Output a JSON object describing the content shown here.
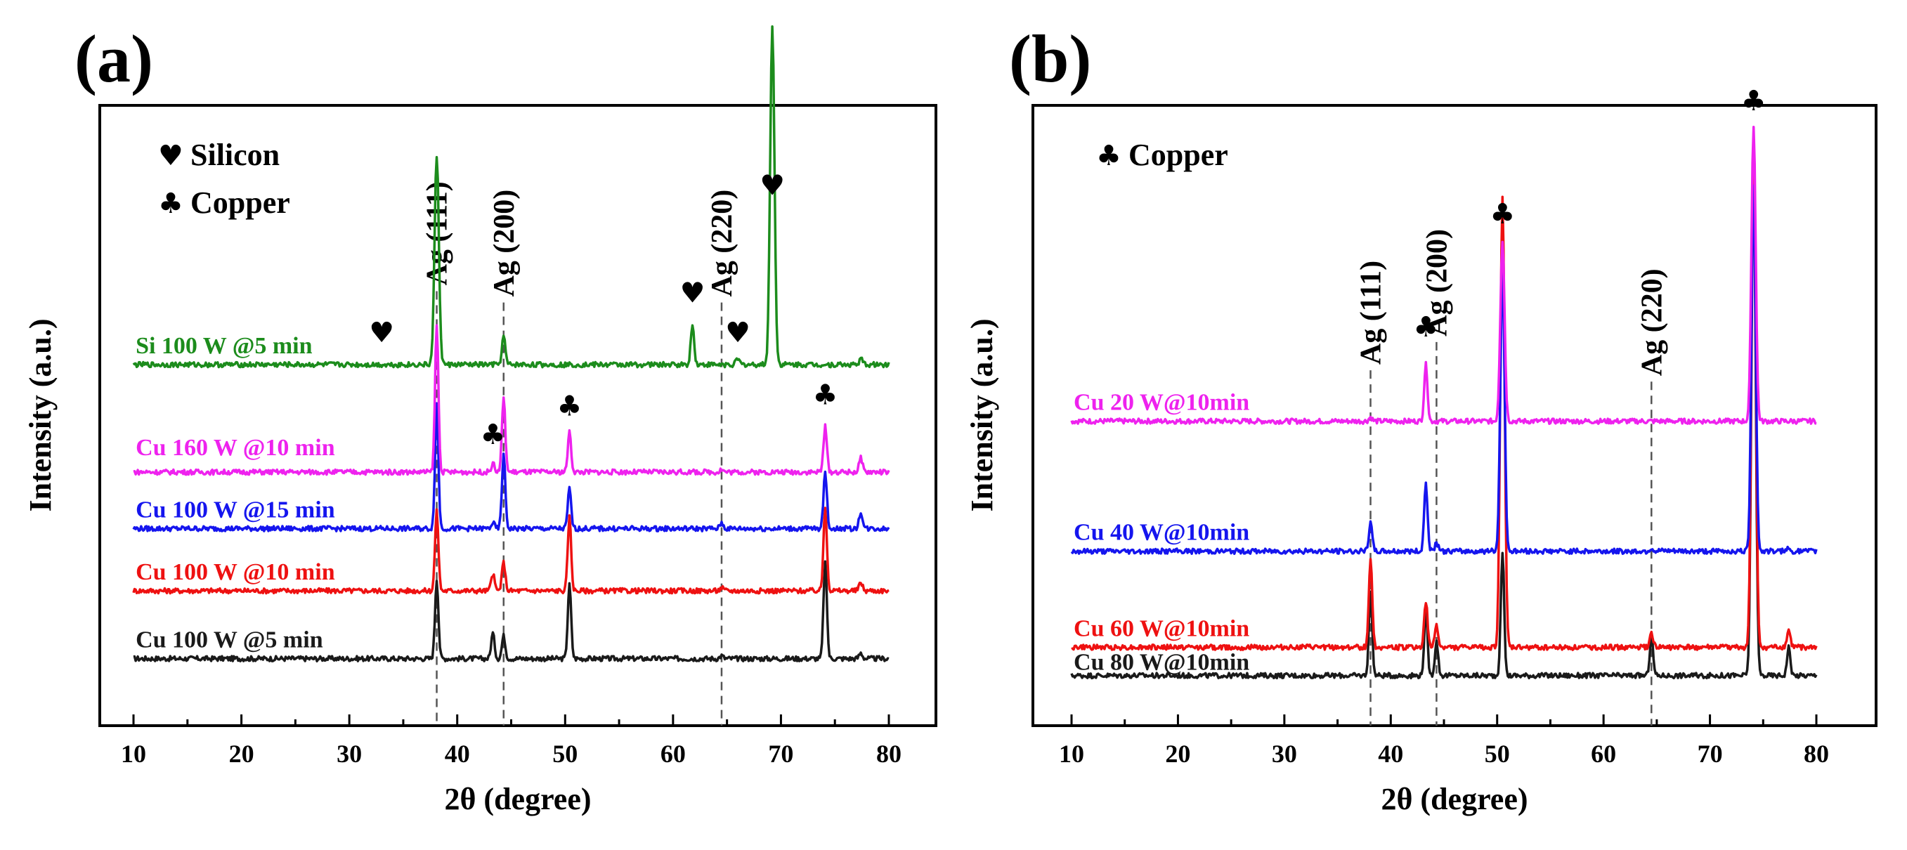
{
  "figure": {
    "panels": [
      "(a)",
      "(b)"
    ]
  },
  "colors": {
    "black": "#1a1a1a",
    "red": "#ee1111",
    "blue": "#1515ee",
    "magenta": "#ee22ee",
    "green": "#1c8c1c"
  },
  "chart_data": [
    {
      "type": "line",
      "panel_label": "(a)",
      "xlabel": "2θ (degree)",
      "ylabel": "Intensity (a.u.)",
      "xlim": [
        10,
        80
      ],
      "ylim": [
        0,
        105
      ],
      "xticks": [
        10,
        20,
        30,
        40,
        50,
        60,
        70,
        80
      ],
      "xtick_labels": [
        "10",
        "20",
        "30",
        "40",
        "50",
        "60",
        "70",
        "80"
      ],
      "legend": [
        {
          "symbol": "♥",
          "label": "Silicon"
        },
        {
          "symbol": "♣",
          "label": "Copper"
        }
      ],
      "reference_lines": [
        {
          "x": 38.1,
          "label": "Ag (111)",
          "label_y": 75
        },
        {
          "x": 44.3,
          "label": "Ag (200)",
          "label_y": 73
        },
        {
          "x": 64.5,
          "label": "Ag (220)",
          "label_y": 73
        }
      ],
      "series": [
        {
          "name": "Cu 100 W @5 min",
          "color": "#1a1a1a",
          "baseline": 9,
          "label_y": 12,
          "peaks": [
            {
              "x": 38.1,
              "h": 14
            },
            {
              "x": 43.3,
              "h": 4.5
            },
            {
              "x": 44.3,
              "h": 4
            },
            {
              "x": 50.4,
              "h": 13
            },
            {
              "x": 64.5,
              "h": 0.5
            },
            {
              "x": 74.1,
              "h": 17
            },
            {
              "x": 77.4,
              "h": 1
            }
          ]
        },
        {
          "name": "Cu 100 W @10 min",
          "color": "#ee1111",
          "baseline": 21,
          "label_y": 24,
          "peaks": [
            {
              "x": 38.1,
              "h": 14
            },
            {
              "x": 43.3,
              "h": 3
            },
            {
              "x": 44.3,
              "h": 5
            },
            {
              "x": 50.4,
              "h": 13
            },
            {
              "x": 64.5,
              "h": 0.5
            },
            {
              "x": 74.1,
              "h": 15
            },
            {
              "x": 77.4,
              "h": 1.5
            }
          ]
        },
        {
          "name": "Cu 100 W @15 min",
          "color": "#1515ee",
          "baseline": 32,
          "label_y": 35,
          "peaks": [
            {
              "x": 38.1,
              "h": 22
            },
            {
              "x": 43.3,
              "h": 1
            },
            {
              "x": 44.3,
              "h": 13
            },
            {
              "x": 50.4,
              "h": 7
            },
            {
              "x": 64.5,
              "h": 1
            },
            {
              "x": 74.1,
              "h": 10
            },
            {
              "x": 77.4,
              "h": 3
            }
          ]
        },
        {
          "name": "Cu 160 W @10 min",
          "color": "#ee22ee",
          "baseline": 42,
          "label_y": 46,
          "peaks": [
            {
              "x": 38.1,
              "h": 26
            },
            {
              "x": 43.3,
              "h": 1.5
            },
            {
              "x": 44.3,
              "h": 13
            },
            {
              "x": 50.4,
              "h": 7
            },
            {
              "x": 64.5,
              "h": 0.5
            },
            {
              "x": 74.1,
              "h": 8
            },
            {
              "x": 77.4,
              "h": 2.5
            }
          ]
        },
        {
          "name": "Si 100 W @5 min",
          "color": "#1c8c1c",
          "baseline": 61,
          "label_y": 64,
          "peaks": [
            {
              "x": 38.1,
              "h": 37
            },
            {
              "x": 44.3,
              "h": 5
            },
            {
              "x": 61.8,
              "h": 7
            },
            {
              "x": 66.0,
              "h": 1
            },
            {
              "x": 69.2,
              "h": 60
            },
            {
              "x": 77.4,
              "h": 1
            }
          ]
        }
      ],
      "markers": [
        {
          "symbol": "♥",
          "x": 33.0,
          "y": 65
        },
        {
          "symbol": "♥",
          "x": 61.8,
          "y": 72
        },
        {
          "symbol": "♥",
          "x": 66.0,
          "y": 65
        },
        {
          "symbol": "♥",
          "x": 69.2,
          "y": 91
        },
        {
          "symbol": "♣",
          "x": 43.3,
          "y": 47
        },
        {
          "symbol": "♣",
          "x": 50.4,
          "y": 52
        },
        {
          "symbol": "♣",
          "x": 74.1,
          "y": 54
        }
      ]
    },
    {
      "type": "line",
      "panel_label": "(b)",
      "xlabel": "2θ (degree)",
      "ylabel": "Intensity (a.u.)",
      "xlim": [
        10,
        80
      ],
      "ylim": [
        0,
        105
      ],
      "xticks": [
        10,
        20,
        30,
        40,
        50,
        60,
        70,
        80
      ],
      "xtick_labels": [
        "10",
        "20",
        "30",
        "40",
        "50",
        "60",
        "70",
        "80"
      ],
      "legend": [
        {
          "symbol": "♣",
          "label": "Copper"
        }
      ],
      "reference_lines": [
        {
          "x": 38.1,
          "label": "Ag (111)",
          "label_y": 61
        },
        {
          "x": 44.3,
          "label": "Ag (200)",
          "label_y": 66
        },
        {
          "x": 64.5,
          "label": "Ag (220)",
          "label_y": 59
        }
      ],
      "series": [
        {
          "name": "Cu 80 W@10min",
          "color": "#1a1a1a",
          "baseline": 6,
          "label_y": 8,
          "peaks": [
            {
              "x": 38.1,
              "h": 15
            },
            {
              "x": 43.3,
              "h": 11
            },
            {
              "x": 44.3,
              "h": 6
            },
            {
              "x": 50.5,
              "h": 22
            },
            {
              "x": 64.5,
              "h": 7
            },
            {
              "x": 74.1,
              "h": 90
            },
            {
              "x": 77.4,
              "h": 5
            }
          ]
        },
        {
          "name": "Cu 60 W@10min",
          "color": "#ee1111",
          "baseline": 11,
          "label_y": 14,
          "peaks": [
            {
              "x": 38.1,
              "h": 16
            },
            {
              "x": 43.3,
              "h": 8
            },
            {
              "x": 44.3,
              "h": 4
            },
            {
              "x": 50.5,
              "h": 80
            },
            {
              "x": 64.5,
              "h": 2.5
            },
            {
              "x": 74.1,
              "h": 90
            },
            {
              "x": 77.4,
              "h": 3
            }
          ]
        },
        {
          "name": "Cu 40 W@10min",
          "color": "#1515ee",
          "baseline": 28,
          "label_y": 31,
          "peaks": [
            {
              "x": 38.1,
              "h": 5
            },
            {
              "x": 43.3,
              "h": 12
            },
            {
              "x": 44.3,
              "h": 1.5
            },
            {
              "x": 50.5,
              "h": 50
            },
            {
              "x": 64.5,
              "h": 0.5
            },
            {
              "x": 74.1,
              "h": 65
            },
            {
              "x": 77.4,
              "h": 0.5
            }
          ]
        },
        {
          "name": "Cu 20 W@10min",
          "color": "#ee22ee",
          "baseline": 51,
          "label_y": 54,
          "peaks": [
            {
              "x": 38.1,
              "h": 0.7
            },
            {
              "x": 43.3,
              "h": 10
            },
            {
              "x": 50.5,
              "h": 32
            },
            {
              "x": 74.1,
              "h": 52
            }
          ]
        }
      ],
      "markers": [
        {
          "symbol": "♣",
          "x": 43.3,
          "y": 66
        },
        {
          "symbol": "♣",
          "x": 50.5,
          "y": 86
        },
        {
          "symbol": "♣",
          "x": 74.1,
          "y": 106
        }
      ]
    }
  ]
}
